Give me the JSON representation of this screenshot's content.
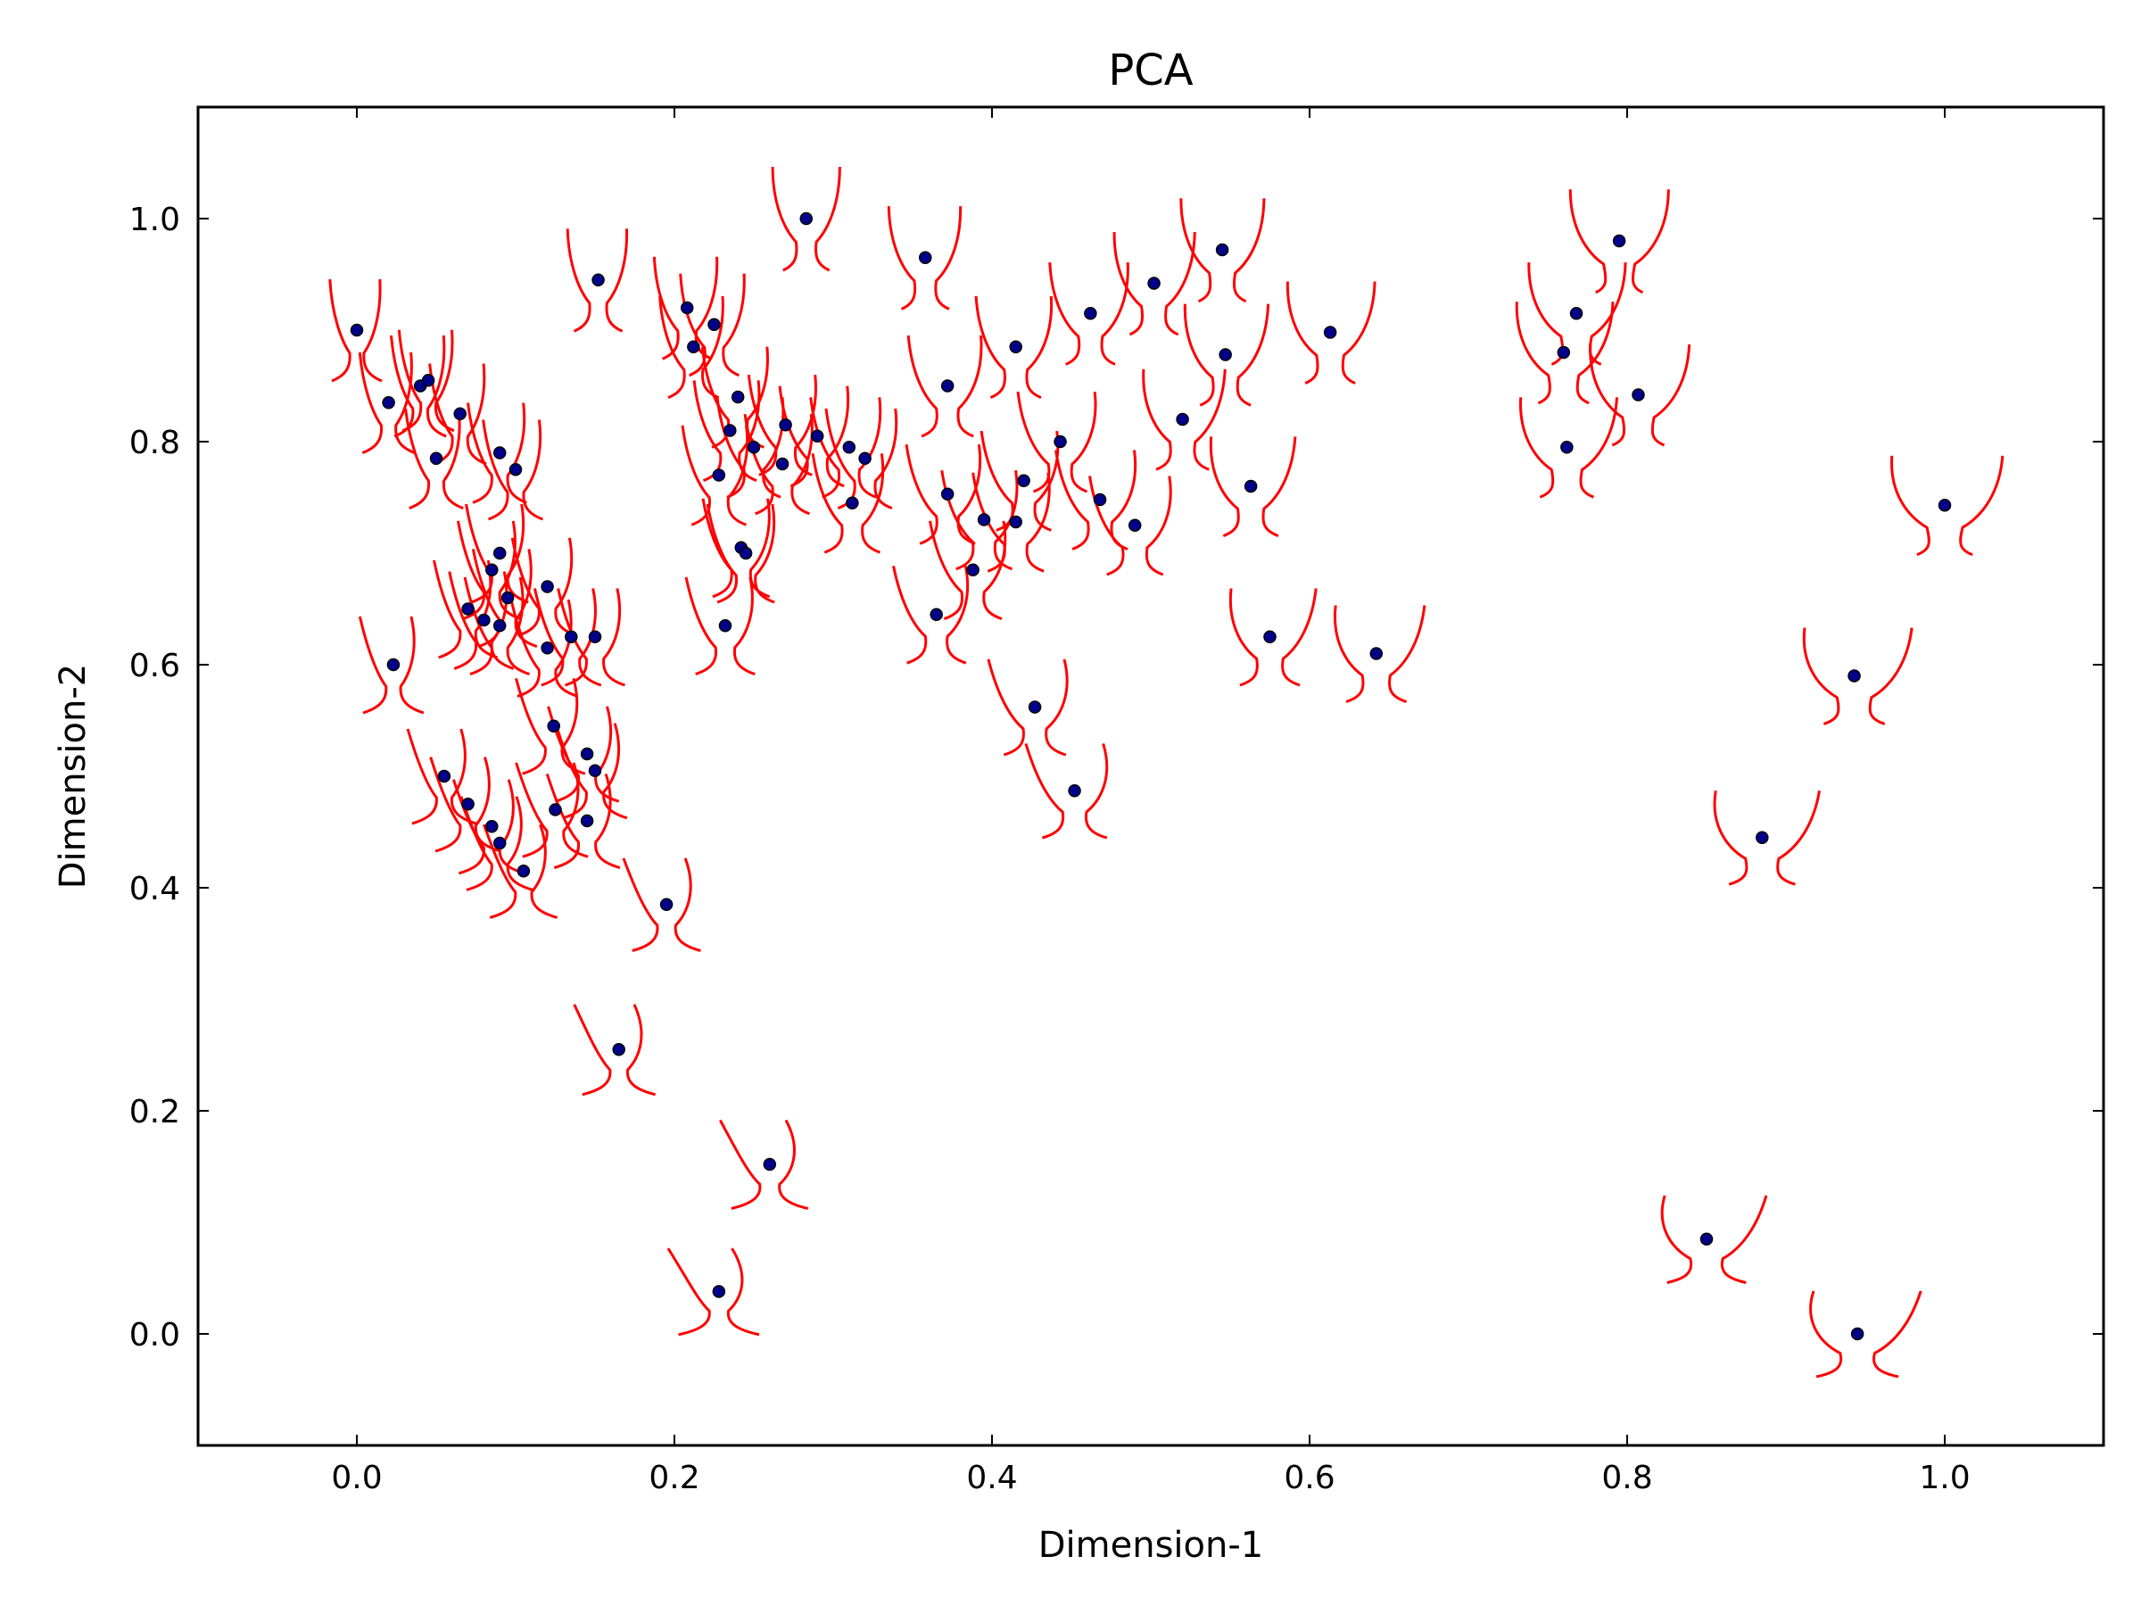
{
  "chart_data": {
    "type": "scatter",
    "title": "PCA",
    "xlabel": "Dimension-1",
    "ylabel": "Dimension-2",
    "xlim": [
      -0.1,
      1.1
    ],
    "ylim": [
      -0.1,
      1.1
    ],
    "xticks": [
      "0.0",
      "0.2",
      "0.4",
      "0.6",
      "0.8",
      "1.0"
    ],
    "yticks": [
      "0.0",
      "0.2",
      "0.4",
      "0.6",
      "0.8",
      "1.0"
    ],
    "xtick_values": [
      0.0,
      0.2,
      0.4,
      0.6,
      0.8,
      1.0
    ],
    "ytick_values": [
      0.0,
      0.2,
      0.4,
      0.6,
      0.8,
      1.0
    ],
    "grid": false,
    "point_color": "#00008b",
    "glyph_color": "#ff0000",
    "points": [
      [
        0.0,
        0.9
      ],
      [
        0.02,
        0.835
      ],
      [
        0.04,
        0.85
      ],
      [
        0.045,
        0.855
      ],
      [
        0.05,
        0.785
      ],
      [
        0.065,
        0.825
      ],
      [
        0.09,
        0.79
      ],
      [
        0.1,
        0.775
      ],
      [
        0.09,
        0.7
      ],
      [
        0.085,
        0.685
      ],
      [
        0.095,
        0.66
      ],
      [
        0.07,
        0.65
      ],
      [
        0.08,
        0.64
      ],
      [
        0.09,
        0.635
      ],
      [
        0.12,
        0.67
      ],
      [
        0.12,
        0.615
      ],
      [
        0.135,
        0.625
      ],
      [
        0.15,
        0.625
      ],
      [
        0.023,
        0.6
      ],
      [
        0.124,
        0.545
      ],
      [
        0.145,
        0.52
      ],
      [
        0.15,
        0.505
      ],
      [
        0.055,
        0.5
      ],
      [
        0.07,
        0.475
      ],
      [
        0.085,
        0.455
      ],
      [
        0.09,
        0.44
      ],
      [
        0.105,
        0.415
      ],
      [
        0.125,
        0.47
      ],
      [
        0.145,
        0.46
      ],
      [
        0.195,
        0.385
      ],
      [
        0.165,
        0.255
      ],
      [
        0.26,
        0.152
      ],
      [
        0.228,
        0.038
      ],
      [
        0.152,
        0.945
      ],
      [
        0.208,
        0.92
      ],
      [
        0.212,
        0.885
      ],
      [
        0.225,
        0.905
      ],
      [
        0.24,
        0.84
      ],
      [
        0.235,
        0.81
      ],
      [
        0.25,
        0.795
      ],
      [
        0.228,
        0.77
      ],
      [
        0.268,
        0.78
      ],
      [
        0.27,
        0.815
      ],
      [
        0.29,
        0.805
      ],
      [
        0.31,
        0.795
      ],
      [
        0.32,
        0.785
      ],
      [
        0.312,
        0.745
      ],
      [
        0.242,
        0.705
      ],
      [
        0.245,
        0.7
      ],
      [
        0.232,
        0.635
      ],
      [
        0.283,
        1.0
      ],
      [
        0.358,
        0.965
      ],
      [
        0.372,
        0.85
      ],
      [
        0.372,
        0.753
      ],
      [
        0.395,
        0.73
      ],
      [
        0.388,
        0.685
      ],
      [
        0.365,
        0.645
      ],
      [
        0.415,
        0.885
      ],
      [
        0.42,
        0.765
      ],
      [
        0.415,
        0.728
      ],
      [
        0.443,
        0.8
      ],
      [
        0.462,
        0.915
      ],
      [
        0.468,
        0.748
      ],
      [
        0.49,
        0.725
      ],
      [
        0.502,
        0.942
      ],
      [
        0.52,
        0.82
      ],
      [
        0.545,
        0.972
      ],
      [
        0.547,
        0.878
      ],
      [
        0.563,
        0.76
      ],
      [
        0.613,
        0.898
      ],
      [
        0.575,
        0.625
      ],
      [
        0.642,
        0.61
      ],
      [
        0.427,
        0.562
      ],
      [
        0.452,
        0.487
      ],
      [
        0.76,
        0.88
      ],
      [
        0.768,
        0.915
      ],
      [
        0.795,
        0.98
      ],
      [
        0.762,
        0.795
      ],
      [
        0.807,
        0.842
      ],
      [
        1.0,
        0.743
      ],
      [
        0.943,
        0.59
      ],
      [
        0.885,
        0.445
      ],
      [
        0.85,
        0.085
      ],
      [
        0.945,
        0.0
      ]
    ]
  }
}
